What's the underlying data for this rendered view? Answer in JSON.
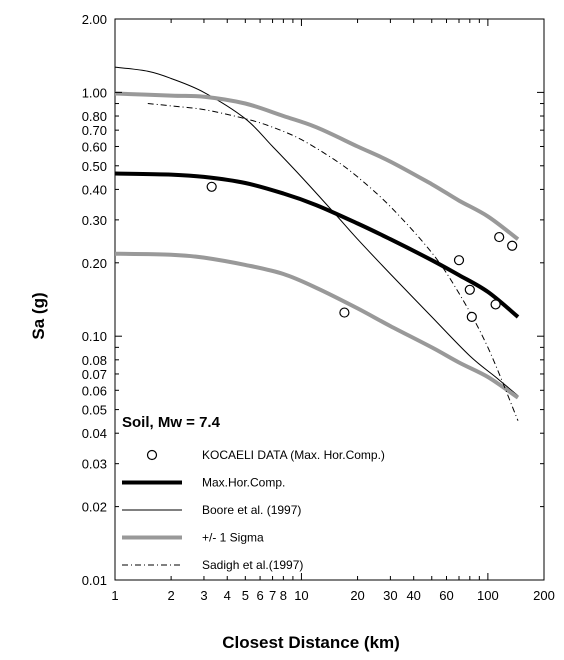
{
  "chart_data": {
    "type": "line",
    "xlabel": "Closest Distance (km)",
    "ylabel": "Sa (g)",
    "xscale": "log",
    "yscale": "log",
    "xlim": [
      1,
      200
    ],
    "ylim": [
      0.01,
      2.0
    ],
    "grid": false,
    "legend_position": "bottom-left",
    "annotation": "Soil, Mw = 7.4",
    "x_ticks": [
      "1",
      "2",
      "3",
      "4",
      "5",
      "6",
      "7",
      "8",
      "10",
      "20",
      "30",
      "40",
      "60",
      "100",
      "200"
    ],
    "y_ticks": [
      "0.01",
      "0.02",
      "0.03",
      "0.04",
      "0.05",
      "0.06",
      "0.07",
      "0.08",
      "0.10",
      "0.20",
      "0.30",
      "0.40",
      "0.50",
      "0.60",
      "0.70",
      "0.80",
      "1.00",
      "2.00"
    ],
    "series": [
      {
        "name": "KOCAELI DATA (Max. Hor.Comp.)",
        "style": "markers",
        "color": "#000000",
        "points": [
          [
            3.3,
            0.41
          ],
          [
            17,
            0.125
          ],
          [
            70,
            0.205
          ],
          [
            80,
            0.155
          ],
          [
            82,
            0.12
          ],
          [
            110,
            0.135
          ],
          [
            115,
            0.255
          ],
          [
            135,
            0.235
          ]
        ]
      },
      {
        "name": "Max.Hor.Comp.",
        "style": "thick",
        "color": "#000000",
        "points": [
          [
            1,
            0.465
          ],
          [
            2,
            0.46
          ],
          [
            3,
            0.45
          ],
          [
            5,
            0.425
          ],
          [
            8,
            0.385
          ],
          [
            12,
            0.345
          ],
          [
            20,
            0.29
          ],
          [
            30,
            0.25
          ],
          [
            50,
            0.205
          ],
          [
            70,
            0.178
          ],
          [
            100,
            0.152
          ],
          [
            145,
            0.12
          ]
        ]
      },
      {
        "name": "Boore et al. (1997)",
        "style": "thin",
        "color": "#000000",
        "points": [
          [
            1,
            1.27
          ],
          [
            1.5,
            1.22
          ],
          [
            2,
            1.14
          ],
          [
            3,
            1.0
          ],
          [
            5,
            0.78
          ],
          [
            7,
            0.6
          ],
          [
            10,
            0.45
          ],
          [
            15,
            0.32
          ],
          [
            20,
            0.25
          ],
          [
            30,
            0.18
          ],
          [
            50,
            0.12
          ],
          [
            80,
            0.083
          ],
          [
            110,
            0.068
          ],
          [
            145,
            0.057
          ]
        ]
      },
      {
        "name": "+/- 1 Sigma",
        "style": "thick-gray",
        "color": "#999999",
        "points": [
          [
            1,
            0.99
          ],
          [
            2,
            0.97
          ],
          [
            3,
            0.96
          ],
          [
            5,
            0.9
          ],
          [
            8,
            0.8
          ],
          [
            12,
            0.72
          ],
          [
            20,
            0.6
          ],
          [
            30,
            0.52
          ],
          [
            50,
            0.42
          ],
          [
            70,
            0.36
          ],
          [
            100,
            0.31
          ],
          [
            145,
            0.25
          ]
        ]
      },
      {
        "name": "+/- 1 Sigma (lower)",
        "style": "thick-gray",
        "color": "#999999",
        "points": [
          [
            1,
            0.218
          ],
          [
            2,
            0.216
          ],
          [
            3,
            0.21
          ],
          [
            5,
            0.196
          ],
          [
            8,
            0.18
          ],
          [
            12,
            0.158
          ],
          [
            20,
            0.13
          ],
          [
            30,
            0.11
          ],
          [
            50,
            0.09
          ],
          [
            70,
            0.078
          ],
          [
            100,
            0.068
          ],
          [
            145,
            0.056
          ]
        ]
      },
      {
        "name": "Sadigh et al.(1997)",
        "style": "dashed",
        "color": "#000000",
        "points": [
          [
            1.5,
            0.9
          ],
          [
            2,
            0.88
          ],
          [
            3,
            0.85
          ],
          [
            5,
            0.78
          ],
          [
            7,
            0.72
          ],
          [
            10,
            0.64
          ],
          [
            15,
            0.53
          ],
          [
            20,
            0.45
          ],
          [
            30,
            0.34
          ],
          [
            50,
            0.22
          ],
          [
            70,
            0.15
          ],
          [
            100,
            0.09
          ],
          [
            145,
            0.045
          ]
        ]
      }
    ],
    "legend": [
      {
        "label": "KOCAELI DATA (Max. Hor.Comp.)",
        "style": "marker"
      },
      {
        "label": "Max.Hor.Comp.",
        "style": "thick"
      },
      {
        "label": "Boore et al. (1997)",
        "style": "thin"
      },
      {
        "label": "+/- 1 Sigma",
        "style": "thick-gray"
      },
      {
        "label": "Sadigh et al.(1997)",
        "style": "dashed"
      }
    ]
  }
}
